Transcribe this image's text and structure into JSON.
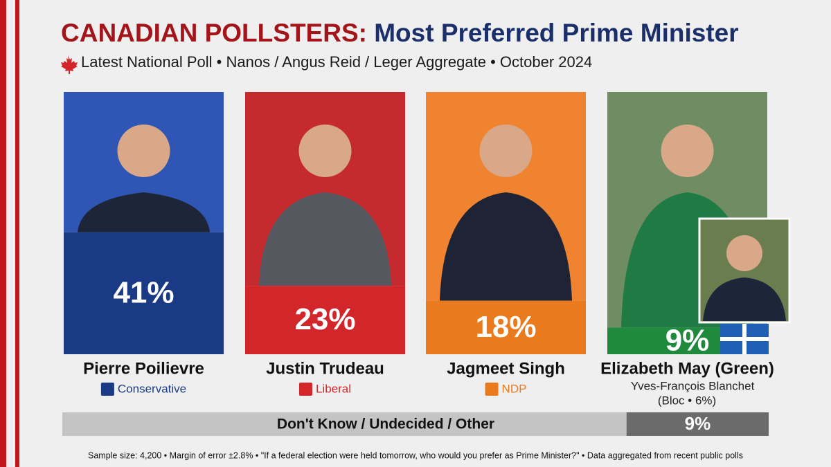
{
  "chart_data": {
    "type": "bar",
    "title": [
      "CANADIAN POLLSTERS:",
      "Most Preferred Prime Minister"
    ],
    "subtitle": "Latest National Poll • Nanos / Angus Reid / Leger Aggregate • October 2024",
    "categories": [
      "Pierre Poilievre",
      "Justin Trudeau",
      "Jagmeet Singh",
      "Elizabeth May (Green)"
    ],
    "values": [
      41,
      23,
      18,
      9
    ],
    "value_labels": [
      "41%",
      "23%",
      "18%",
      "9%"
    ],
    "parties": [
      "Conservative",
      "Liberal",
      "NDP",
      null
    ],
    "colors": [
      "#1b3a85",
      "#d3262b",
      "#ea7a1e",
      "#1f8a3b"
    ],
    "bloc": {
      "name": "Yves-François Blanchet",
      "value": 6,
      "value_label": "(Bloc • 6%)"
    },
    "undecided": {
      "label": "Don't Know / Undecided / Other",
      "value": 9,
      "value_label": "9%"
    },
    "footnote": "Sample size: 4,200 • Margin of error ±2.8% • \"If a federal election were held tomorrow, who would you prefer as Prime Minister?\" • Data aggregated from recent public polls"
  }
}
